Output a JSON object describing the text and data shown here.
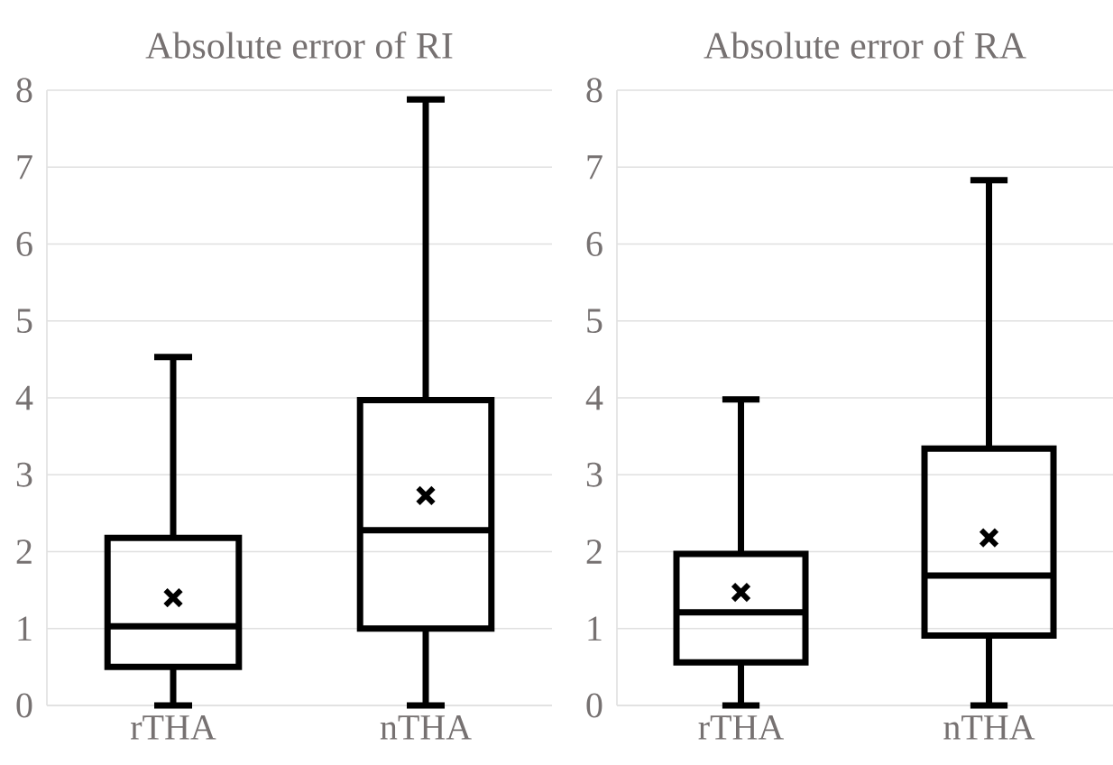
{
  "chart_data": [
    {
      "type": "box",
      "title": "Absolute error of RI",
      "categories": [
        "rTHA",
        "nTHA"
      ],
      "ylim": [
        0,
        8
      ],
      "yticks": [
        0,
        1,
        2,
        3,
        4,
        5,
        6,
        7,
        8
      ],
      "grid": "y",
      "series": [
        {
          "color": "#000000",
          "boxes": [
            {
              "low": 0,
              "q1": 0.5,
              "median": 1.03,
              "q3": 2.18,
              "high": 4.53,
              "mean": 1.4
            },
            {
              "low": 0,
              "q1": 1.0,
              "median": 2.28,
              "q3": 3.97,
              "high": 7.88,
              "mean": 2.73
            }
          ]
        }
      ]
    },
    {
      "type": "box",
      "title": "Absolute error of RA",
      "categories": [
        "rTHA",
        "nTHA"
      ],
      "ylim": [
        0,
        8
      ],
      "yticks": [
        0,
        1,
        2,
        3,
        4,
        5,
        6,
        7,
        8
      ],
      "grid": "y",
      "series": [
        {
          "color": "#000000",
          "boxes": [
            {
              "low": 0,
              "q1": 0.56,
              "median": 1.21,
              "q3": 1.97,
              "high": 3.98,
              "mean": 1.47
            },
            {
              "low": 0,
              "q1": 0.91,
              "median": 1.69,
              "q3": 3.34,
              "high": 6.83,
              "mean": 2.18
            }
          ]
        }
      ]
    }
  ]
}
